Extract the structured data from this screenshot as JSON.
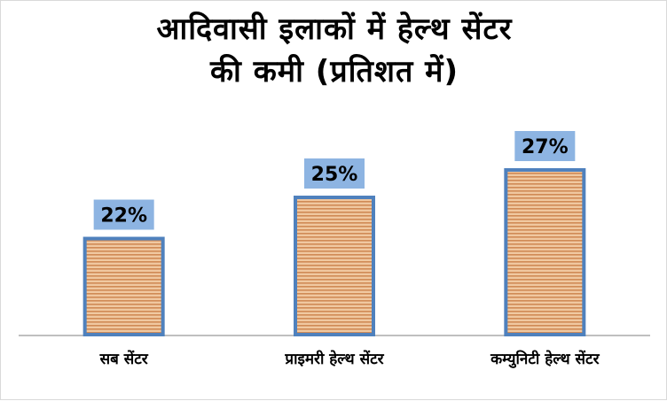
{
  "title_lines": [
    "आदिवासी इलाकों में हेल्थ सेंटर",
    "की कमी (प्रतिशत में)"
  ],
  "chart_data": {
    "type": "bar",
    "title": "आदिवासी इलाकों में हेल्थ सेंटर की कमी (प्रतिशत में)",
    "categories": [
      "सब सेंटर",
      "प्राइमरी हेल्थ सेंटर",
      "कम्युनिटी हेल्थ सेंटर"
    ],
    "values": [
      22,
      25,
      27
    ],
    "data_labels": [
      "22%",
      "25%",
      "27%"
    ],
    "xlabel": "",
    "ylabel": "",
    "ylim": [
      15,
      29
    ],
    "grid": false,
    "legend": "none"
  },
  "colors": {
    "bar_fill": "#f0c8a0",
    "bar_stripe": "#d08a55",
    "bar_border": "#4f81bd",
    "label_box": "#8db4e2",
    "axis": "#bfbfbf"
  }
}
